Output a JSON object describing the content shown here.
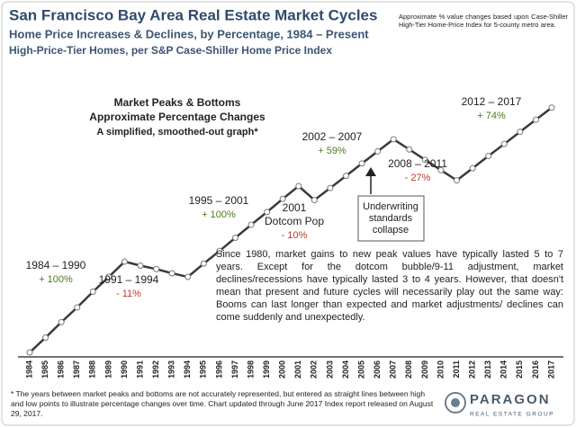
{
  "chart_data": {
    "type": "line",
    "title": "San Francisco Bay Area Real Estate Market Cycles",
    "subtitle": [
      "Home Price Increases & Declines, by Percentage, 1984 – Present",
      "High-Price-Tier Homes, per S&P Case-Shiller Home Price Index"
    ],
    "note": "Approximate % value changes based upon Case-Shiller High-Tier Home-Price Index for 5-county metro area.",
    "heading": [
      "Market Peaks & Bottoms",
      "Approximate Percentage Changes",
      "A simplified, smoothed-out graph*"
    ],
    "categories": [
      "1984",
      "1985",
      "1986",
      "1987",
      "1988",
      "1989",
      "1990",
      "1991",
      "1992",
      "1993",
      "1994",
      "1995",
      "1996",
      "1997",
      "1998",
      "1999",
      "2000",
      "2001",
      "2002",
      "2003",
      "2004",
      "2005",
      "2006",
      "2007",
      "2008",
      "2009",
      "2010",
      "2011",
      "2012",
      "2013",
      "2014",
      "2015",
      "2016",
      "2017"
    ],
    "values": [
      100,
      112,
      126,
      141,
      159,
      178,
      200,
      194,
      189,
      183,
      178,
      197,
      217,
      240,
      265,
      292,
      323,
      356,
      320,
      351,
      385,
      423,
      464,
      509,
      471,
      435,
      402,
      372,
      408,
      448,
      491,
      539,
      591,
      648
    ],
    "color": "#3a3a3a",
    "log": true,
    "ylim": [
      96,
      768
    ],
    "annotations": [
      {
        "period": "1984 – 1990",
        "change": "+ 100%",
        "color": "#4e7a1e"
      },
      {
        "period": "1991 – 1994",
        "change": "- 11%",
        "color": "#c0392b"
      },
      {
        "period": "1995 – 2001",
        "change": "+ 100%",
        "color": "#4e7a1e"
      },
      {
        "period": "2001",
        "event": "Dotcom Pop",
        "change": "- 10%",
        "color": "#c0392b"
      },
      {
        "period": "2002 – 2007",
        "change": "+ 59%",
        "color": "#4e7a1e"
      },
      {
        "period": "2008 – 2011",
        "change": "- 27%",
        "color": "#c0392b"
      },
      {
        "period": "2012 – 2017",
        "change": "+ 74%",
        "color": "#4e7a1e"
      }
    ],
    "callout": [
      "Underwriting",
      "standards",
      "collapse"
    ],
    "paragraph": "Since 1980, market gains to new peak values have typically lasted 5 to 7 years. Except for the dotcom bubble/9-11 adjustment, market declines/recessions have typically lasted 3 to 4 years. However, that doesn't mean that present and future cycles will necessarily play out the same way: Booms can last longer than expected and market adjustments/ declines can come suddenly and unexpectedly.",
    "footnote": "* The years between market peaks and bottoms are not accurately represented, but entered as straight lines between high and low points to illustrate percentage changes over time. Chart updated through June 2017 Index report released on August 29, 2017.",
    "logo": [
      "PARAGON",
      "REAL ESTATE GROUP"
    ]
  }
}
